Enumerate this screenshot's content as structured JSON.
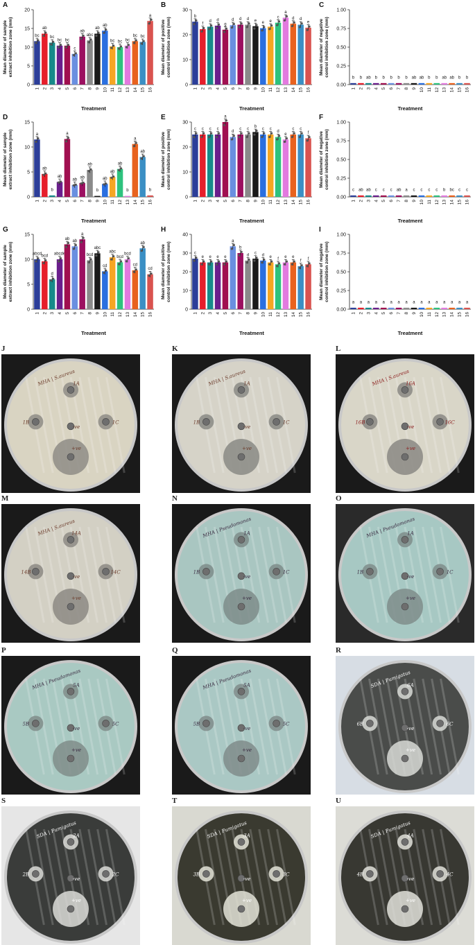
{
  "treatments": [
    "1",
    "2",
    "3",
    "4",
    "5",
    "6",
    "7",
    "8",
    "9",
    "10",
    "11",
    "12",
    "13",
    "14",
    "15",
    "16"
  ],
  "colors": [
    "#2c3e99",
    "#e61e2b",
    "#178a8a",
    "#6a1e8c",
    "#a01050",
    "#6a8fe0",
    "#9b1060",
    "#8a8a8a",
    "#1a1a1a",
    "#2a6fe0",
    "#f5a623",
    "#2ec27e",
    "#e27adf",
    "#e8621e",
    "#3b8fc4",
    "#d9534f"
  ],
  "xlabel": "Treatment",
  "chart_data": [
    {
      "type": "bar",
      "panel": "A",
      "ylabel": "Mean diameter of sample extract inhibition zone (mm)",
      "ylim": [
        0,
        20
      ],
      "yticks": [
        "0",
        "5",
        "10",
        "15",
        "20"
      ],
      "values": [
        11.6,
        13.6,
        11.2,
        10.4,
        10.4,
        8.2,
        12.8,
        11.8,
        13.6,
        14.4,
        10.2,
        10.0,
        10.4,
        11.6,
        11.4,
        17.0
      ],
      "letters": [
        "bc",
        "ab",
        "bc",
        "bc",
        "bc",
        "c",
        "ab",
        "abc",
        "ab",
        "ab",
        "bc",
        "bc",
        "bc",
        "bc",
        "bc",
        "a"
      ]
    },
    {
      "type": "bar",
      "panel": "B",
      "ylabel": "Mean diameter of positive control inhibition zone (mm)",
      "ylim": [
        0,
        30
      ],
      "yticks": [
        "0",
        "10",
        "20",
        "30"
      ],
      "values": [
        25.2,
        22.2,
        23.2,
        23.6,
        22.0,
        23.8,
        24.0,
        24.0,
        23.4,
        22.6,
        23.2,
        24.8,
        26.8,
        24.4,
        24.0,
        22.8
      ],
      "letters": [
        "b",
        "f",
        "d",
        "d",
        "g",
        "d",
        "d",
        "d",
        "e",
        "e",
        "e",
        "c",
        "a",
        "d",
        "d",
        "e"
      ]
    },
    {
      "type": "bar",
      "panel": "C",
      "ylabel": "Mean diameter of negative control inhibition zone (mm)",
      "ylim": [
        0,
        1
      ],
      "yticks": [
        "0.00",
        "0.25",
        "0.50",
        "0.75",
        "1.00"
      ],
      "values": [
        0.02,
        0.02,
        0.02,
        0.02,
        0.02,
        0.02,
        0.02,
        0.02,
        0.02,
        0.02,
        0.02,
        0.02,
        0.02,
        0.02,
        0.02,
        0.02
      ],
      "letters": [
        "b",
        "b",
        "ab",
        "b",
        "b",
        "b",
        "b",
        "b",
        "ab",
        "ab",
        "b",
        "b",
        "ab",
        "ab",
        "b",
        "b"
      ]
    },
    {
      "type": "bar",
      "panel": "D",
      "ylabel": "Mean diameter of sample extract inhibition zone (mm)",
      "ylim": [
        0,
        15
      ],
      "yticks": [
        "0",
        "5",
        "10",
        "15"
      ],
      "values": [
        11.5,
        4.6,
        0.3,
        3.0,
        11.6,
        2.4,
        2.8,
        5.4,
        0.2,
        2.6,
        4.0,
        5.6,
        0.2,
        10.6,
        8.0,
        0.3
      ],
      "letters": [
        "a",
        "ab",
        "b",
        "ab",
        "a",
        "ab",
        "ab",
        "ab",
        "b",
        "ab",
        "ab",
        "ab",
        "b",
        "a",
        "ab",
        "b"
      ]
    },
    {
      "type": "bar",
      "panel": "E",
      "ylabel": "Mean diameter of positive control inhibition zone (mm)",
      "ylim": [
        0,
        30
      ],
      "yticks": [
        "0",
        "10",
        "20",
        "30"
      ],
      "values": [
        25.0,
        25.0,
        25.0,
        25.0,
        30.0,
        24.0,
        25.0,
        25.0,
        26.0,
        25.0,
        25.0,
        24.0,
        23.0,
        25.0,
        25.0,
        23.5
      ],
      "letters": [
        "c",
        "c",
        "c",
        "c",
        "a",
        "d",
        "c",
        "c",
        "b",
        "c",
        "c",
        "d",
        "e",
        "c",
        "c",
        "f"
      ]
    },
    {
      "type": "bar",
      "panel": "F",
      "ylabel": "Mean diameter of negative control inhibition zone (mm)",
      "ylim": [
        0,
        1
      ],
      "yticks": [
        "0.00",
        "0.25",
        "0.50",
        "0.75",
        "1.00"
      ],
      "values": [
        0.02,
        0.02,
        0.02,
        0.02,
        0.02,
        0.02,
        0.02,
        0.02,
        0.02,
        0.02,
        0.02,
        0.02,
        0.02,
        0.02,
        0.02,
        0.02
      ],
      "letters": [
        "c",
        "ab",
        "ab",
        "c",
        "c",
        "c",
        "ab",
        "a",
        "c",
        "c",
        "c",
        "c",
        "b",
        "bc",
        "c",
        "c"
      ]
    },
    {
      "type": "bar",
      "panel": "G",
      "ylabel": "Mean diameter of sample extract inhibition zone (mm)",
      "ylim": [
        0,
        15
      ],
      "yticks": [
        "0",
        "5",
        "10",
        "15"
      ],
      "values": [
        10.0,
        9.6,
        6.0,
        10.0,
        13.0,
        12.6,
        14.0,
        9.8,
        11.2,
        7.6,
        10.4,
        9.4,
        10.0,
        7.8,
        12.2,
        7.0
      ],
      "letters": [
        "abcd",
        "bcd",
        "d",
        "abcde",
        "ab",
        "ab",
        "a",
        "bcd",
        "abc",
        "cd",
        "abc",
        "bcd",
        "bcd",
        "cd",
        "ab",
        "cd"
      ]
    },
    {
      "type": "bar",
      "panel": "H",
      "ylabel": "Mean diameter of positive control inhibition zone (mm)",
      "ylim": [
        0,
        40
      ],
      "yticks": [
        "0",
        "10",
        "20",
        "30",
        "40"
      ],
      "values": [
        27.0,
        25.0,
        25.0,
        25.0,
        25.0,
        33.6,
        30.0,
        26.0,
        27.0,
        26.0,
        25.0,
        24.0,
        25.0,
        25.0,
        23.0,
        24.0
      ],
      "letters": [
        "c",
        "e",
        "e",
        "e",
        "e",
        "a",
        "b",
        "d",
        "c",
        "d",
        "e",
        "f",
        "e",
        "e",
        "f",
        "f"
      ]
    },
    {
      "type": "bar",
      "panel": "I",
      "ylabel": "Mean diameter of negative control inhibition zone (mm)",
      "ylim": [
        0,
        1
      ],
      "yticks": [
        "0.00",
        "0.25",
        "0.50",
        "0.75",
        "1.00"
      ],
      "values": [
        0.02,
        0.02,
        0.02,
        0.02,
        0.02,
        0.02,
        0.02,
        0.02,
        0.02,
        0.02,
        0.02,
        0.02,
        0.02,
        0.02,
        0.02,
        0.02
      ],
      "letters": [
        "a",
        "a",
        "a",
        "a",
        "a",
        "a",
        "a",
        "a",
        "a",
        "a",
        "a",
        "a",
        "a",
        "a",
        "a",
        "a"
      ]
    }
  ],
  "plates": [
    {
      "label": "J",
      "header": "MHA | S.aureus",
      "wells": [
        "1A",
        "1B",
        "1C",
        "-ve",
        "+ve"
      ],
      "medium": "#d9d4c2",
      "zone": "#8e8c86",
      "bg": "#1a1a1a",
      "ink": "#6b3a2a"
    },
    {
      "label": "K",
      "header": "MHA | S.aureus",
      "wells": [
        "1A",
        "1B",
        "1C",
        "-ve",
        "+ve"
      ],
      "medium": "#d6d3c8",
      "zone": "#8a8985",
      "bg": "#1a1a1a",
      "ink": "#6b3a2a"
    },
    {
      "label": "L",
      "header": "MHA | S.aureus",
      "wells": [
        "16A",
        "16B",
        "16C",
        "-ve",
        "+ve"
      ],
      "medium": "#d9d6c8",
      "zone": "#8a8884",
      "bg": "#1a1a1a",
      "ink": "#8a1a1a"
    },
    {
      "label": "M",
      "header": "MHA | S.aureus",
      "wells": [
        "14A",
        "14B",
        "14C",
        "-ve",
        "+ve"
      ],
      "medium": "#d3d0c4",
      "zone": "#8c8a84",
      "bg": "#1a1a1a",
      "ink": "#6b3a2a"
    },
    {
      "label": "N",
      "header": "MHA | Pseudomonas",
      "wells": [
        "1A",
        "1B",
        "1C",
        "-ve",
        "+ve"
      ],
      "medium": "#a9c6c1",
      "zone": "#7e8c8a",
      "bg": "#1a1a1a",
      "ink": "#3a2a40"
    },
    {
      "label": "O",
      "header": "MHA | Pseudomonas",
      "wells": [
        "1A",
        "1B",
        "1C",
        "-ve",
        "+ve"
      ],
      "medium": "#a7c8c3",
      "zone": "#7f8d8b",
      "bg": "#2a2a2a",
      "ink": "#3a2a40"
    },
    {
      "label": "P",
      "header": "MHA | Pseudomonas",
      "wells": [
        "5A",
        "5B",
        "5C",
        "-ve",
        "+ve"
      ],
      "medium": "#a9c9c2",
      "zone": "#808d8a",
      "bg": "#1a1a1a",
      "ink": "#3a2a40"
    },
    {
      "label": "Q",
      "header": "MHA | Pseudomonas",
      "wells": [
        "5A",
        "5B",
        "5C",
        "-ve",
        "+ve"
      ],
      "medium": "#aac8c4",
      "zone": "#808c8b",
      "bg": "#1a1a1a",
      "ink": "#3a2a40"
    },
    {
      "label": "R",
      "header": "SDA | Fumigatus",
      "wells": [
        "6A",
        "6B",
        "6C",
        "-ve",
        "+ve"
      ],
      "medium": "#4a4c4a",
      "zone": "#d8dad6",
      "bg": "#d7dde4",
      "ink": "#ffffff"
    },
    {
      "label": "S",
      "header": "SDA | Fumigatus",
      "wells": [
        "2A",
        "2B",
        "2C",
        "-ve",
        "+ve"
      ],
      "medium": "#3a3c3a",
      "zone": "#dcdcd8",
      "bg": "#e6e6e6",
      "ink": "#ffffff"
    },
    {
      "label": "T",
      "header": "SDA | Fumigatus",
      "wells": [
        "3A",
        "3B",
        "3C",
        "-ve",
        "+ve"
      ],
      "medium": "#3a3a30",
      "zone": "#e4e4d8",
      "bg": "#d9d9d1",
      "ink": "#ffffff"
    },
    {
      "label": "U",
      "header": "SDA | Fumigatus",
      "wells": [
        "4A",
        "4B",
        "4C",
        "-ve",
        "+ve"
      ],
      "medium": "#383832",
      "zone": "#e2e2da",
      "bg": "#dcdcd6",
      "ink": "#ffffff"
    }
  ]
}
